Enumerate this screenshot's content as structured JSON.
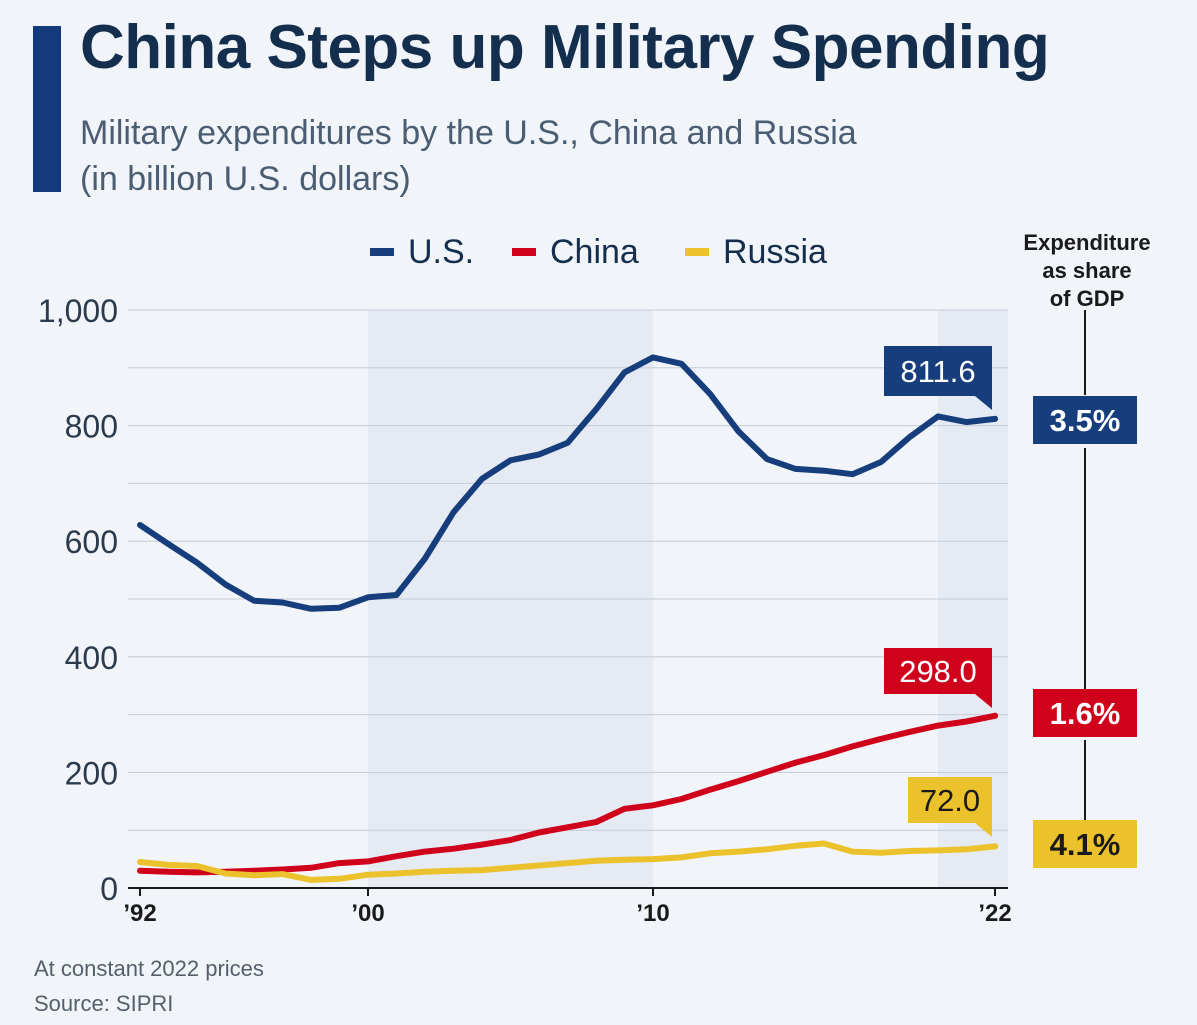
{
  "header": {
    "title": "China Steps up Military Spending",
    "subtitle_line1": "Military expenditures by the U.S., China and Russia",
    "subtitle_line2": "(in billion U.S. dollars)"
  },
  "gdp_header": [
    "Expenditure",
    "as share",
    "of GDP"
  ],
  "footer": {
    "note": "At constant 2022 prices",
    "source": "Source: SIPRI"
  },
  "colors": {
    "us": "#163d7c",
    "china": "#d0021b",
    "russia": "#ebc22c",
    "accent": "#133a7c",
    "shade": "#e5eaf3",
    "grid": "#c5ccd6",
    "axis_text": "#2b3a4d"
  },
  "chart_data": {
    "type": "line",
    "x": [
      1992,
      1993,
      1994,
      1995,
      1996,
      1997,
      1998,
      1999,
      2000,
      2001,
      2002,
      2003,
      2004,
      2005,
      2006,
      2007,
      2008,
      2009,
      2010,
      2011,
      2012,
      2013,
      2014,
      2015,
      2016,
      2017,
      2018,
      2019,
      2020,
      2021,
      2022
    ],
    "x_tick_labels": [
      "’92",
      "’00",
      "’10",
      "’22"
    ],
    "x_tick_years": [
      1992,
      2000,
      2010,
      2022
    ],
    "ylim": [
      0,
      1000
    ],
    "y_ticks": [
      0,
      200,
      400,
      600,
      800,
      1000
    ],
    "y_tick_labels": [
      "0",
      "200",
      "400",
      "600",
      "800",
      "1,000"
    ],
    "shaded_ranges": [
      [
        2000,
        2010
      ],
      [
        2020,
        2022.5
      ]
    ],
    "series": [
      {
        "name": "U.S.",
        "key": "us",
        "values": [
          628,
          595,
          563,
          525,
          497,
          494,
          483,
          485,
          503,
          507,
          570,
          650,
          708,
          740,
          750,
          770,
          828,
          892,
          918,
          907,
          855,
          790,
          742,
          725,
          722,
          716,
          737,
          780,
          816,
          806,
          811.6
        ],
        "end_label": "811.6",
        "gdp_share": "3.5%"
      },
      {
        "name": "China",
        "key": "china",
        "values": [
          30,
          28,
          27,
          28,
          30,
          32,
          35,
          43,
          46,
          55,
          63,
          68,
          75,
          83,
          96,
          105,
          114,
          137,
          143,
          154,
          170,
          185,
          201,
          217,
          230,
          245,
          258,
          270,
          281,
          288,
          298.0
        ],
        "end_label": "298.0",
        "gdp_share": "1.6%"
      },
      {
        "name": "Russia",
        "key": "russia",
        "values": [
          45,
          40,
          38,
          25,
          22,
          24,
          14,
          16,
          23,
          25,
          28,
          30,
          31,
          35,
          39,
          43,
          47,
          49,
          50,
          53,
          60,
          63,
          67,
          73,
          77,
          63,
          61,
          64,
          65,
          67,
          72.0
        ],
        "end_label": "72.0",
        "gdp_share": "4.1%"
      }
    ]
  }
}
